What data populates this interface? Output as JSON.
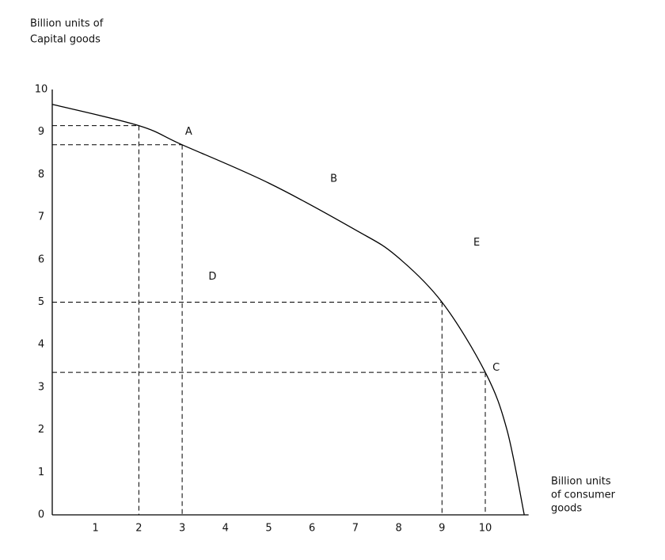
{
  "chart_data": {
    "type": "line",
    "y_axis_label": [
      "Billion units of",
      "Capital goods"
    ],
    "x_axis_label": [
      "Billion units",
      "of consumer",
      "goods"
    ],
    "xlim": [
      0,
      11
    ],
    "ylim": [
      0,
      10
    ],
    "xticks": [
      1,
      2,
      3,
      4,
      5,
      6,
      7,
      8,
      9,
      10
    ],
    "yticks": [
      0,
      1,
      2,
      3,
      4,
      5,
      6,
      7,
      8,
      9,
      10
    ],
    "grid": false,
    "series": [
      {
        "color": "#000000",
        "x": [
          0,
          2,
          3,
          5,
          7,
          7.93,
          9,
          10,
          10.5,
          10.9
        ],
        "values": [
          9.65,
          9.15,
          8.7,
          7.8,
          6.7,
          6.1,
          5.0,
          3.35,
          2.0,
          0
        ]
      }
    ],
    "guides": {
      "x": [
        2,
        3,
        9,
        10
      ],
      "y": [
        9.15,
        8.7,
        5.0,
        3.35
      ]
    },
    "annotations": [
      {
        "text": "A",
        "x": 3.15,
        "y": 9.0
      },
      {
        "text": "B",
        "x": 6.5,
        "y": 7.9
      },
      {
        "text": "D",
        "x": 3.7,
        "y": 5.6
      },
      {
        "text": "E",
        "x": 9.8,
        "y": 6.4
      },
      {
        "text": "C",
        "x": 10.25,
        "y": 3.45
      }
    ]
  }
}
